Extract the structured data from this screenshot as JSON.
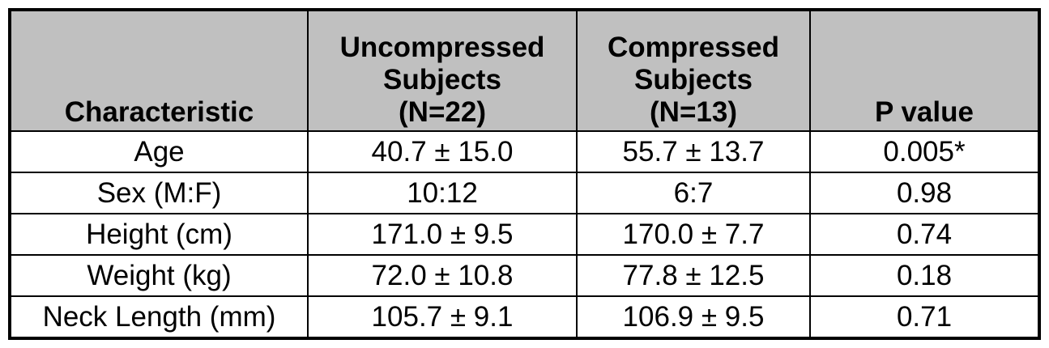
{
  "table": {
    "header": [
      [
        "Characteristic"
      ],
      [
        "Uncompressed",
        "Subjects",
        "(N=22)"
      ],
      [
        "Compressed",
        "Subjects",
        "(N=13)"
      ],
      [
        "P value"
      ]
    ],
    "rows": [
      [
        "Age",
        "40.7 ± 15.0",
        "55.7 ± 13.7",
        "0.005*"
      ],
      [
        "Sex (M:F)",
        "10:12",
        "6:7",
        "0.98"
      ],
      [
        "Height (cm)",
        "171.0 ± 9.5",
        "170.0 ± 7.7",
        "0.74"
      ],
      [
        "Weight (kg)",
        "72.0 ± 10.8",
        "77.8 ± 12.5",
        "0.18"
      ],
      [
        "Neck Length (mm)",
        "105.7 ± 9.1",
        "106.9 ± 9.5",
        "0.71"
      ]
    ]
  }
}
